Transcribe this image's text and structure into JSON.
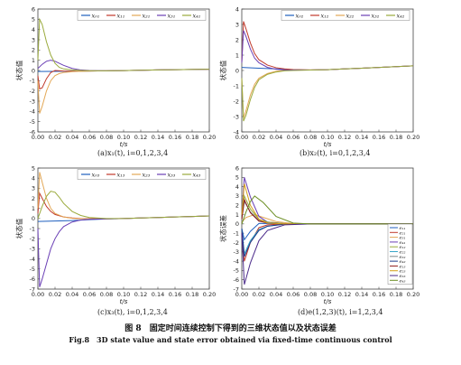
{
  "chart_data": [
    {
      "type": "line",
      "caption": "(a)x₁(t), i=0,1,2,3,4",
      "xlabel": "t/s",
      "ylabel": "状态值",
      "xlim": [
        0,
        0.2
      ],
      "ylim": [
        -6,
        6
      ],
      "xticks": [
        "0.00",
        "0.02",
        "0.04",
        "0.06",
        "0.08",
        "0.10",
        "0.12",
        "0.14",
        "0.16",
        "0.18",
        "0.20"
      ],
      "yticks": [
        "-6",
        "-5",
        "-4",
        "-3",
        "-2",
        "-1",
        "0",
        "1",
        "2",
        "3",
        "4",
        "5",
        "6"
      ],
      "legend": "top",
      "grid": false,
      "series": [
        {
          "name": "x₀₁",
          "color": "#1f5fbf",
          "x": [
            0,
            0.02,
            0.04,
            0.06,
            0.08,
            0.1,
            0.12,
            0.14,
            0.16,
            0.18,
            0.2
          ],
          "values": [
            -0.1,
            -0.09,
            -0.07,
            -0.05,
            -0.03,
            -0.01,
            0.02,
            0.05,
            0.08,
            0.1,
            0.12
          ]
        },
        {
          "name": "x₁₁",
          "color": "#c0392b",
          "x": [
            0,
            0.002,
            0.005,
            0.01,
            0.015,
            0.02,
            0.03,
            0.04,
            0.05,
            0.06,
            0.08,
            0.1,
            0.12,
            0.14,
            0.16,
            0.18,
            0.2
          ],
          "values": [
            -0.5,
            -1.8,
            -1.7,
            -0.8,
            -0.2,
            0.0,
            -0.05,
            -0.08,
            -0.07,
            -0.05,
            -0.03,
            -0.01,
            0.02,
            0.05,
            0.08,
            0.1,
            0.12
          ]
        },
        {
          "name": "x₂₁",
          "color": "#e3a857",
          "x": [
            0,
            0.002,
            0.005,
            0.01,
            0.015,
            0.02,
            0.025,
            0.03,
            0.04,
            0.05,
            0.06,
            0.08,
            0.1,
            0.12,
            0.14,
            0.16,
            0.18,
            0.2
          ],
          "values": [
            -1.0,
            -4.2,
            -3.5,
            -2.0,
            -1.0,
            -0.5,
            -0.3,
            -0.2,
            -0.12,
            -0.08,
            -0.05,
            -0.03,
            -0.01,
            0.02,
            0.05,
            0.08,
            0.1,
            0.12
          ]
        },
        {
          "name": "x₃₁",
          "color": "#6a3fb5",
          "x": [
            0,
            0.005,
            0.01,
            0.015,
            0.02,
            0.025,
            0.03,
            0.04,
            0.05,
            0.06,
            0.08,
            0.1,
            0.12,
            0.14,
            0.16,
            0.18,
            0.2
          ],
          "values": [
            0.2,
            0.6,
            0.9,
            1.0,
            0.9,
            0.7,
            0.5,
            0.2,
            0.05,
            0.0,
            -0.03,
            -0.01,
            0.02,
            0.05,
            0.08,
            0.1,
            0.12
          ]
        },
        {
          "name": "x₄₁",
          "color": "#9aaa3c",
          "x": [
            0,
            0.002,
            0.005,
            0.01,
            0.015,
            0.02,
            0.025,
            0.03,
            0.04,
            0.05,
            0.06,
            0.08,
            0.1,
            0.12,
            0.14,
            0.16,
            0.18,
            0.2
          ],
          "values": [
            1.0,
            5.0,
            4.5,
            2.8,
            1.5,
            0.7,
            0.3,
            0.15,
            0.05,
            0.0,
            -0.02,
            -0.03,
            -0.01,
            0.02,
            0.05,
            0.08,
            0.1,
            0.12
          ]
        }
      ]
    },
    {
      "type": "line",
      "caption": "(b)x₂(t), i=0,1,2,3,4",
      "xlabel": "t/s",
      "ylabel": "状态值",
      "xlim": [
        0,
        0.2
      ],
      "ylim": [
        -4,
        4
      ],
      "xticks": [
        "0.00",
        "0.02",
        "0.04",
        "0.06",
        "0.08",
        "0.10",
        "0.12",
        "0.14",
        "0.16",
        "0.18",
        "0.20"
      ],
      "yticks": [
        "-4",
        "-3",
        "-2",
        "-1",
        "0",
        "1",
        "2",
        "3",
        "4"
      ],
      "legend": "top",
      "grid": false,
      "series": [
        {
          "name": "x₀₂",
          "color": "#1f5fbf",
          "x": [
            0,
            0.02,
            0.04,
            0.06,
            0.08,
            0.1,
            0.12,
            0.14,
            0.16,
            0.18,
            0.2
          ],
          "values": [
            0.2,
            0.15,
            0.1,
            0.05,
            0.03,
            0.05,
            0.1,
            0.15,
            0.2,
            0.25,
            0.3
          ]
        },
        {
          "name": "x₁₂",
          "color": "#c0392b",
          "x": [
            0,
            0.002,
            0.005,
            0.01,
            0.015,
            0.02,
            0.03,
            0.04,
            0.05,
            0.06,
            0.08,
            0.1,
            0.12,
            0.14,
            0.16,
            0.18,
            0.2
          ],
          "values": [
            0.5,
            3.2,
            2.7,
            1.8,
            1.1,
            0.7,
            0.35,
            0.18,
            0.1,
            0.06,
            0.04,
            0.05,
            0.1,
            0.15,
            0.2,
            0.25,
            0.3
          ]
        },
        {
          "name": "x₂₂",
          "color": "#e3a857",
          "x": [
            0,
            0.002,
            0.005,
            0.01,
            0.015,
            0.02,
            0.03,
            0.04,
            0.05,
            0.06,
            0.08,
            0.1,
            0.12,
            0.14,
            0.16,
            0.18,
            0.2
          ],
          "values": [
            -0.5,
            -3.1,
            -2.6,
            -1.6,
            -0.9,
            -0.5,
            -0.2,
            -0.05,
            0.0,
            0.02,
            0.03,
            0.05,
            0.1,
            0.15,
            0.2,
            0.25,
            0.3
          ]
        },
        {
          "name": "x₃₂",
          "color": "#6a3fb5",
          "x": [
            0,
            0.002,
            0.005,
            0.01,
            0.015,
            0.02,
            0.03,
            0.04,
            0.05,
            0.06,
            0.08,
            0.1,
            0.12,
            0.14,
            0.16,
            0.18,
            0.2
          ],
          "values": [
            0.5,
            2.6,
            2.2,
            1.4,
            0.8,
            0.5,
            0.2,
            0.08,
            0.04,
            0.03,
            0.03,
            0.05,
            0.1,
            0.15,
            0.2,
            0.25,
            0.3
          ]
        },
        {
          "name": "x₄₂",
          "color": "#9aaa3c",
          "x": [
            0,
            0.002,
            0.005,
            0.01,
            0.015,
            0.02,
            0.03,
            0.04,
            0.05,
            0.06,
            0.08,
            0.1,
            0.12,
            0.14,
            0.16,
            0.18,
            0.2
          ],
          "values": [
            -0.5,
            -3.3,
            -2.9,
            -1.9,
            -1.1,
            -0.6,
            -0.25,
            -0.1,
            -0.02,
            0.0,
            0.03,
            0.05,
            0.1,
            0.15,
            0.2,
            0.25,
            0.3
          ]
        }
      ]
    },
    {
      "type": "line",
      "caption": "(c)x₃(t), i=0,1,2,3,4",
      "xlabel": "t/s",
      "ylabel": "状态值",
      "xlim": [
        0,
        0.2
      ],
      "ylim": [
        -7,
        5
      ],
      "xticks": [
        "0.00",
        "0.02",
        "0.04",
        "0.06",
        "0.08",
        "0.10",
        "0.12",
        "0.14",
        "0.16",
        "0.18",
        "0.20"
      ],
      "yticks": [
        "-7",
        "-6",
        "-5",
        "-4",
        "-3",
        "-2",
        "-1",
        "0",
        "1",
        "2",
        "3",
        "4",
        "5"
      ],
      "legend": "top",
      "grid": false,
      "series": [
        {
          "name": "x₀₃",
          "color": "#1f5fbf",
          "x": [
            0,
            0.02,
            0.04,
            0.06,
            0.08,
            0.1,
            0.12,
            0.14,
            0.16,
            0.18,
            0.2
          ],
          "values": [
            -0.3,
            -0.25,
            -0.2,
            -0.12,
            -0.05,
            0.0,
            0.05,
            0.1,
            0.15,
            0.2,
            0.25
          ]
        },
        {
          "name": "x₁₃",
          "color": "#c0392b",
          "x": [
            0,
            0.002,
            0.005,
            0.01,
            0.015,
            0.02,
            0.03,
            0.04,
            0.05,
            0.06,
            0.08,
            0.1,
            0.12,
            0.14,
            0.16,
            0.18,
            0.2
          ],
          "values": [
            0.5,
            2.5,
            2.0,
            1.2,
            0.7,
            0.4,
            0.15,
            0.05,
            0.0,
            -0.02,
            -0.03,
            0.0,
            0.05,
            0.1,
            0.15,
            0.2,
            0.25
          ]
        },
        {
          "name": "x₂₃",
          "color": "#e3a857",
          "x": [
            0,
            0.002,
            0.005,
            0.01,
            0.015,
            0.02,
            0.03,
            0.04,
            0.05,
            0.06,
            0.08,
            0.1,
            0.12,
            0.14,
            0.16,
            0.18,
            0.2
          ],
          "values": [
            1.0,
            4.6,
            3.6,
            2.0,
            1.0,
            0.5,
            0.15,
            0.02,
            -0.03,
            -0.04,
            -0.04,
            0.0,
            0.05,
            0.1,
            0.15,
            0.2,
            0.25
          ]
        },
        {
          "name": "x₃₃",
          "color": "#6a3fb5",
          "x": [
            0,
            0.002,
            0.005,
            0.01,
            0.015,
            0.02,
            0.025,
            0.03,
            0.04,
            0.05,
            0.06,
            0.08,
            0.1,
            0.12,
            0.14,
            0.16,
            0.18,
            0.2
          ],
          "values": [
            -1.0,
            -6.8,
            -6.0,
            -4.5,
            -3.0,
            -2.0,
            -1.3,
            -0.8,
            -0.35,
            -0.15,
            -0.08,
            -0.04,
            0.0,
            0.05,
            0.1,
            0.15,
            0.2,
            0.25
          ]
        },
        {
          "name": "x₄₃",
          "color": "#9aaa3c",
          "x": [
            0,
            0.005,
            0.01,
            0.015,
            0.02,
            0.025,
            0.03,
            0.04,
            0.05,
            0.06,
            0.08,
            0.1,
            0.12,
            0.14,
            0.16,
            0.18,
            0.2
          ],
          "values": [
            0.0,
            1.2,
            2.2,
            2.7,
            2.6,
            2.1,
            1.5,
            0.7,
            0.3,
            0.1,
            0.0,
            0.0,
            0.05,
            0.1,
            0.15,
            0.2,
            0.25
          ]
        }
      ]
    },
    {
      "type": "line",
      "caption": "(d)e(1,2,3)(t), i=1,2,3,4",
      "xlabel": "t/s",
      "ylabel": "状态误差",
      "xlim": [
        0,
        0.2
      ],
      "ylim": [
        -7,
        6
      ],
      "xticks": [
        "0.00",
        "0.02",
        "0.04",
        "0.06",
        "0.08",
        "0.10",
        "0.12",
        "0.14",
        "0.16",
        "0.18",
        "0.20"
      ],
      "yticks": [
        "-7",
        "-6",
        "-5",
        "-4",
        "-3",
        "-2",
        "-1",
        "0",
        "1",
        "2",
        "3",
        "4",
        "5",
        "6"
      ],
      "legend": "right",
      "grid": false,
      "series": [
        {
          "name": "e₁₁",
          "color": "#1f5fbf",
          "x": [
            0,
            0.003,
            0.01,
            0.02,
            0.03,
            0.05,
            0.08,
            0.12,
            0.2
          ],
          "values": [
            -0.5,
            -1.7,
            -0.8,
            0.05,
            0.05,
            0.0,
            0.0,
            0.0,
            0.0
          ]
        },
        {
          "name": "e₂₁",
          "color": "#c0392b",
          "x": [
            0,
            0.003,
            0.01,
            0.02,
            0.03,
            0.05,
            0.08,
            0.12,
            0.2
          ],
          "values": [
            -1.0,
            -4.0,
            -2.0,
            -0.4,
            -0.1,
            0.0,
            0.0,
            0.0,
            0.0
          ]
        },
        {
          "name": "e₃₁",
          "color": "#e3a857",
          "x": [
            0,
            0.005,
            0.015,
            0.025,
            0.04,
            0.06,
            0.08,
            0.12,
            0.2
          ],
          "values": [
            0.2,
            0.7,
            1.0,
            0.7,
            0.25,
            0.03,
            0.0,
            0.0,
            0.0
          ]
        },
        {
          "name": "e₄₁",
          "color": "#6a3fb5",
          "x": [
            0,
            0.003,
            0.01,
            0.02,
            0.03,
            0.05,
            0.08,
            0.12,
            0.2
          ],
          "values": [
            1.0,
            5.0,
            2.9,
            0.8,
            0.2,
            0.02,
            0.0,
            0.0,
            0.0
          ]
        },
        {
          "name": "e₁₂",
          "color": "#9aaa3c",
          "x": [
            0,
            0.003,
            0.01,
            0.02,
            0.03,
            0.05,
            0.08,
            0.12,
            0.2
          ],
          "values": [
            0.5,
            3.0,
            1.6,
            0.5,
            0.2,
            0.05,
            0.0,
            0.0,
            0.0
          ]
        },
        {
          "name": "e₂₂",
          "color": "#39a7c9",
          "x": [
            0,
            0.003,
            0.01,
            0.02,
            0.03,
            0.05,
            0.08,
            0.12,
            0.2
          ],
          "values": [
            -0.5,
            -3.2,
            -1.8,
            -0.6,
            -0.25,
            -0.03,
            0.0,
            0.0,
            0.0
          ]
        },
        {
          "name": "e₃₂",
          "color": "#7f8c8d",
          "x": [
            0,
            0.003,
            0.01,
            0.02,
            0.03,
            0.05,
            0.08,
            0.12,
            0.2
          ],
          "values": [
            0.5,
            2.4,
            1.3,
            0.4,
            0.15,
            0.02,
            0.0,
            0.0,
            0.0
          ]
        },
        {
          "name": "e₄₂",
          "color": "#1a3a8a",
          "x": [
            0,
            0.003,
            0.01,
            0.02,
            0.03,
            0.05,
            0.08,
            0.12,
            0.2
          ],
          "values": [
            -0.5,
            -3.5,
            -2.0,
            -0.7,
            -0.25,
            -0.03,
            0.0,
            0.0,
            0.0
          ]
        },
        {
          "name": "e₁₃",
          "color": "#8e1b1b",
          "x": [
            0,
            0.003,
            0.01,
            0.02,
            0.03,
            0.05,
            0.08,
            0.12,
            0.2
          ],
          "values": [
            0.5,
            2.6,
            1.2,
            0.3,
            0.1,
            0.0,
            0.0,
            0.0,
            0.0
          ]
        },
        {
          "name": "e₂₃",
          "color": "#d4a017",
          "x": [
            0,
            0.003,
            0.01,
            0.02,
            0.03,
            0.05,
            0.08,
            0.12,
            0.2
          ],
          "values": [
            1.0,
            4.3,
            2.0,
            0.5,
            0.1,
            0.0,
            0.0,
            0.0,
            0.0
          ]
        },
        {
          "name": "e₃₃",
          "color": "#4b2a8a",
          "x": [
            0,
            0.003,
            0.01,
            0.02,
            0.03,
            0.05,
            0.08,
            0.12,
            0.2
          ],
          "values": [
            -1.0,
            -6.5,
            -4.2,
            -1.8,
            -0.7,
            -0.1,
            0.0,
            0.0,
            0.0
          ]
        },
        {
          "name": "e₄₃",
          "color": "#6b8e23",
          "x": [
            0,
            0.005,
            0.01,
            0.015,
            0.025,
            0.04,
            0.06,
            0.08,
            0.12,
            0.2
          ],
          "values": [
            0.0,
            1.3,
            2.4,
            3.0,
            2.3,
            0.8,
            0.1,
            0.0,
            0.0,
            0.0
          ]
        }
      ]
    }
  ],
  "figure": {
    "title_cn": "图 8　固定时间连续控制下得到的三维状态值以及状态误差",
    "title_en": "Fig.8　3D state value and state error obtained via fixed-time continuous control"
  }
}
